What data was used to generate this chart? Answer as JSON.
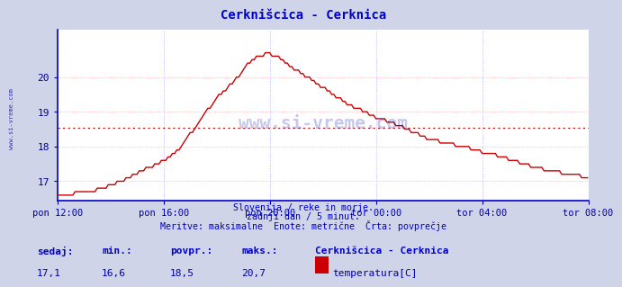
{
  "title": "Cerknišcica - Cerknica",
  "title_color": "#0000cc",
  "bg_color": "#d0d4e8",
  "plot_bg_color": "#ffffff",
  "grid_color_v": "#aaaaff",
  "grid_color_h": "#ffaaaa",
  "line_color": "#cc0000",
  "axis_color_left": "#0000cc",
  "axis_color_bottom": "#0000cc",
  "tick_color": "#0000aa",
  "watermark_color": "#0000aa",
  "avg_line_color": "#cc0000",
  "avg_value": 18.55,
  "ylim_min": 16.45,
  "ylim_max": 21.35,
  "yticks": [
    17,
    18,
    19,
    20
  ],
  "footer_color": "#0000cc",
  "footer_line1": "Slovenija / reke in morje.",
  "footer_line2": "zadnji dan / 5 minut.",
  "footer_line3": "Meritve: maksimalne  Enote: metrične  Črta: povprečje",
  "legend_title": "Cerknišcica - Cerknica",
  "legend_label": "temperatura[C]",
  "legend_color": "#cc0000",
  "stat_sedaj_label": "sedaj:",
  "stat_min_label": "min.:",
  "stat_povpr_label": "povpr.:",
  "stat_maks_label": "maks.:",
  "stat_sedaj": "17,1",
  "stat_min": "16,6",
  "stat_povpr": "18,5",
  "stat_maks": "20,7",
  "xtick_labels": [
    "pon 12:00",
    "pon 16:00",
    "pon 20:00",
    "tor 00:00",
    "tor 04:00",
    "tor 08:00"
  ],
  "xtick_positions": [
    0,
    48,
    96,
    144,
    192,
    240
  ],
  "total_points": 289,
  "watermark": "www.si-vreme.com",
  "ylabel_rotated": "www.si-vreme.com"
}
